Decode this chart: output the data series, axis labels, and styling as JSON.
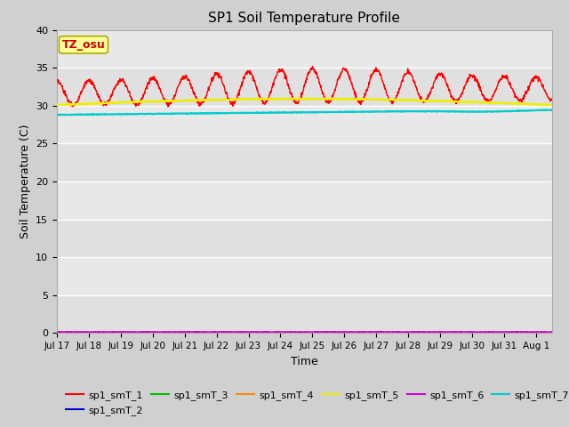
{
  "title": "SP1 Soil Temperature Profile",
  "xlabel": "Time",
  "ylabel": "Soil Temperature (C)",
  "ylim": [
    0,
    40
  ],
  "days": 15.5,
  "xtick_labels": [
    "Jul 17",
    "Jul 18",
    "Jul 19",
    "Jul 20",
    "Jul 21",
    "Jul 22",
    "Jul 23",
    "Jul 24",
    "Jul 25",
    "Jul 26",
    "Jul 27",
    "Jul 28",
    "Jul 29",
    "Jul 30",
    "Jul 31",
    "Aug 1"
  ],
  "annotation_text": "TZ_osu",
  "annotation_color": "#cc0000",
  "annotation_bg": "#ffff99",
  "annotation_border": "#aaaa00",
  "plot_bg_color": "#e8e8e8",
  "fig_bg_color": "#d0d0d0",
  "grid_color": "#ffffff",
  "series_colors": {
    "sp1_smT_1": "#ff0000",
    "sp1_smT_2": "#0000cc",
    "sp1_smT_3": "#00bb00",
    "sp1_smT_4": "#ff8800",
    "sp1_smT_5": "#eeee00",
    "sp1_smT_6": "#cc00cc",
    "sp1_smT_7": "#00cccc"
  },
  "yticks": [
    0,
    5,
    10,
    15,
    20,
    25,
    30,
    35,
    40
  ],
  "band_colors": [
    "#e0e0e0",
    "#e8e8e8"
  ]
}
